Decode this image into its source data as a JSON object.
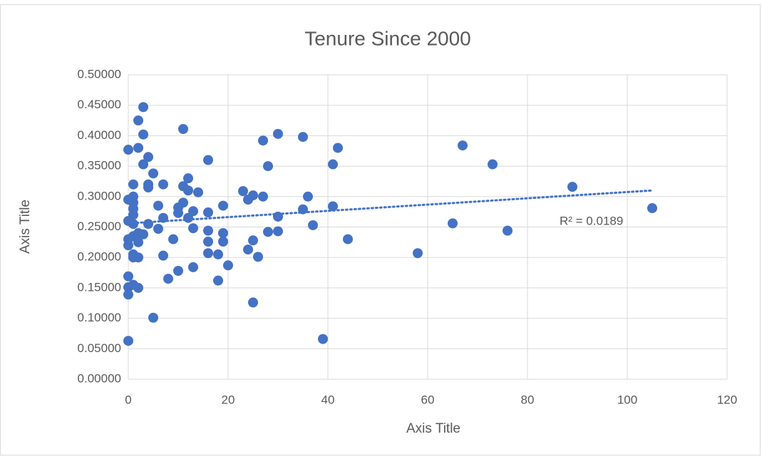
{
  "chart_data": {
    "type": "scatter",
    "title": "Tenure Since 2000",
    "x_label": "Axis Title",
    "y_label": "Axis Title",
    "color": "#4472c4",
    "grid": true,
    "x": [
      0,
      0,
      0,
      0,
      0,
      0,
      0,
      0,
      0,
      1,
      1,
      1,
      1,
      1,
      1,
      1,
      1,
      1,
      1,
      2,
      2,
      2,
      2,
      2,
      2,
      3,
      3,
      3,
      3,
      4,
      4,
      4,
      4,
      5,
      5,
      6,
      6,
      7,
      7,
      7,
      8,
      9,
      10,
      10,
      10,
      11,
      11,
      11,
      12,
      12,
      12,
      13,
      13,
      13,
      14,
      16,
      16,
      16,
      16,
      16,
      18,
      18,
      19,
      19,
      19,
      20,
      23,
      24,
      24,
      25,
      25,
      25,
      26,
      27,
      27,
      28,
      28,
      30,
      30,
      30,
      35,
      35,
      36,
      37,
      39,
      41,
      41,
      42,
      44,
      58,
      65,
      67,
      73,
      76,
      89,
      105
    ],
    "values": [
      0.377,
      0.295,
      0.26,
      0.23,
      0.22,
      0.169,
      0.151,
      0.139,
      0.063,
      0.32,
      0.3,
      0.29,
      0.28,
      0.27,
      0.255,
      0.235,
      0.205,
      0.2,
      0.155,
      0.425,
      0.38,
      0.24,
      0.225,
      0.2,
      0.15,
      0.447,
      0.402,
      0.353,
      0.238,
      0.365,
      0.32,
      0.315,
      0.255,
      0.338,
      0.101,
      0.285,
      0.247,
      0.32,
      0.265,
      0.203,
      0.165,
      0.23,
      0.282,
      0.273,
      0.178,
      0.411,
      0.317,
      0.29,
      0.33,
      0.31,
      0.265,
      0.276,
      0.248,
      0.184,
      0.307,
      0.36,
      0.274,
      0.244,
      0.226,
      0.207,
      0.205,
      0.162,
      0.285,
      0.24,
      0.226,
      0.187,
      0.309,
      0.295,
      0.213,
      0.302,
      0.228,
      0.126,
      0.201,
      0.392,
      0.3,
      0.35,
      0.242,
      0.403,
      0.267,
      0.243,
      0.398,
      0.279,
      0.3,
      0.253,
      0.066,
      0.353,
      0.284,
      0.38,
      0.23,
      0.207,
      0.256,
      0.384,
      0.353,
      0.244,
      0.316,
      0.281
    ],
    "trendline": {
      "x": [
        0,
        105
      ],
      "values": [
        0.256,
        0.31
      ],
      "label": "R² = 0.0189"
    },
    "xlim": [
      0,
      120
    ],
    "xticks": [
      0,
      20,
      40,
      60,
      80,
      100,
      120
    ],
    "ylim": [
      0,
      0.5
    ],
    "yticks": [
      {
        "value": 0,
        "label": "0.00000"
      },
      {
        "value": 0.05,
        "label": "0.05000"
      },
      {
        "value": 0.1,
        "label": "0.10000"
      },
      {
        "value": 0.15,
        "label": "0.15000"
      },
      {
        "value": 0.2,
        "label": "0.20000"
      },
      {
        "value": 0.25,
        "label": "0.25000"
      },
      {
        "value": 0.3,
        "label": "0.30000"
      },
      {
        "value": 0.35,
        "label": "0.35000"
      },
      {
        "value": 0.4,
        "label": "0.40000"
      },
      {
        "value": 0.45,
        "label": "0.45000"
      },
      {
        "value": 0.5,
        "label": "0.50000"
      }
    ]
  }
}
